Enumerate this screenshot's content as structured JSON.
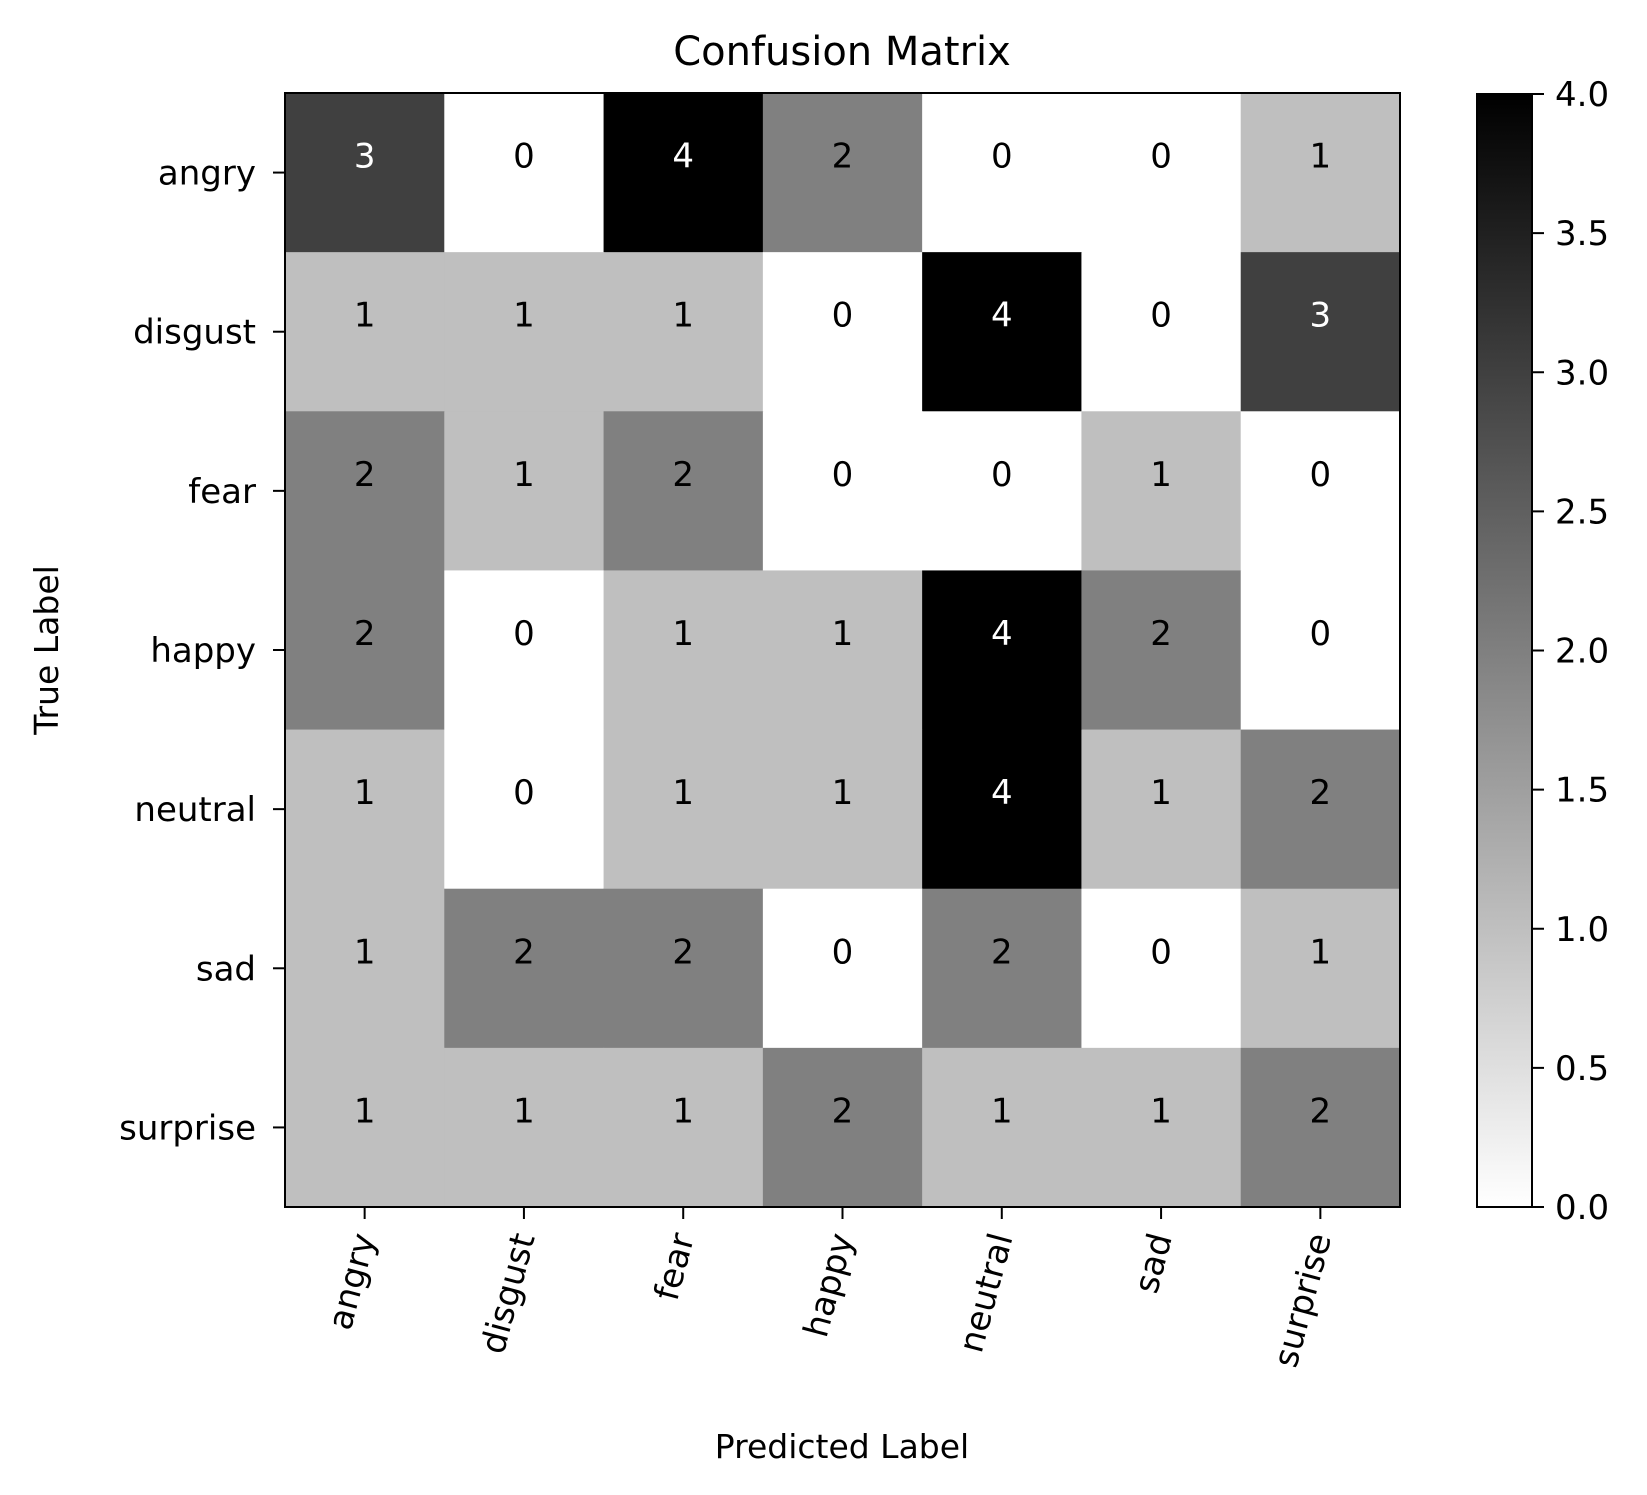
{
  "chart_data": {
    "type": "heatmap",
    "title": "Confusion Matrix",
    "xlabel": "Predicted Label",
    "ylabel": "True Label",
    "x_categories": [
      "angry",
      "disgust",
      "fear",
      "happy",
      "neutral",
      "sad",
      "surprise"
    ],
    "y_categories": [
      "angry",
      "disgust",
      "fear",
      "happy",
      "neutral",
      "sad",
      "surprise"
    ],
    "values": [
      [
        3,
        0,
        4,
        2,
        0,
        0,
        1
      ],
      [
        1,
        1,
        1,
        0,
        4,
        0,
        3
      ],
      [
        2,
        1,
        2,
        0,
        0,
        1,
        0
      ],
      [
        2,
        0,
        1,
        1,
        4,
        2,
        0
      ],
      [
        1,
        0,
        1,
        1,
        4,
        1,
        2
      ],
      [
        1,
        2,
        2,
        0,
        2,
        0,
        1
      ],
      [
        1,
        1,
        1,
        2,
        1,
        1,
        2
      ]
    ],
    "colormap": "greys",
    "colorbar": {
      "min": 0,
      "max": 4,
      "ticks": [
        "0.0",
        "0.5",
        "1.0",
        "1.5",
        "2.0",
        "2.5",
        "3.0",
        "3.5",
        "4.0"
      ]
    },
    "x_tick_rotation": "rotated",
    "grid": false
  }
}
